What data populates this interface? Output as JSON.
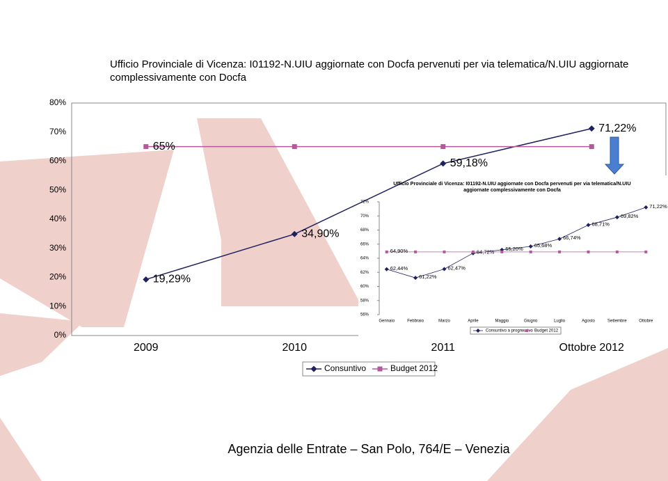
{
  "chart_data": [
    {
      "type": "line",
      "title": "Ufficio Provinciale di Vicenza: I01192-N.UIU aggiornate con Docfa pervenuti per via telematica/N.UIU aggiornate complessivamente con Docfa",
      "categories": [
        "2009",
        "2010",
        "2011",
        "Ottobre 2012"
      ],
      "series": [
        {
          "name": "Consuntivo",
          "color": "#1f2060",
          "marker": "diamond",
          "values": [
            19.29,
            34.9,
            59.18,
            71.22
          ],
          "value_labels": [
            "19,29%",
            "34,90%",
            "59,18%",
            "71,22%"
          ]
        },
        {
          "name": "Budget 2012",
          "color": "#b4579c",
          "marker": "square",
          "values": [
            65,
            65,
            65,
            65
          ],
          "value_labels": [
            "65%",
            null,
            null,
            null
          ]
        }
      ],
      "ylim": [
        0,
        80
      ],
      "yticks": [
        {
          "value": 0,
          "label": "0%"
        },
        {
          "value": 10,
          "label": "10%"
        },
        {
          "value": 20,
          "label": "20%"
        },
        {
          "value": 30,
          "label": "30%"
        },
        {
          "value": 40,
          "label": "40%"
        },
        {
          "value": 50,
          "label": "50%"
        },
        {
          "value": 60,
          "label": "60%"
        },
        {
          "value": 70,
          "label": "70%"
        },
        {
          "value": 80,
          "label": "80%"
        }
      ],
      "grid": false
    },
    {
      "type": "line",
      "title": "Ufficio Provinciale di Vicenza: I01192-N.UIU aggiornate con Docfa pervenuti per via telematica/N.UIU aggiornate complessivamente con Docfa",
      "categories": [
        "Gennaio",
        "Febbraio",
        "Marzo",
        "Aprile",
        "Maggio",
        "Giugno",
        "Luglio",
        "Agosto",
        "Settembre",
        "Ottobre"
      ],
      "series": [
        {
          "name": "Consuntivo a progressivo",
          "color": "#1f2060",
          "marker": "diamond",
          "values": [
            62.44,
            61.22,
            62.47,
            64.72,
            65.2,
            65.68,
            66.74,
            68.71,
            69.82,
            71.22
          ],
          "value_labels": [
            "62,44%",
            "61,22%",
            "62,47%",
            "64,72%",
            "65,20%",
            "65,68%",
            "66,74%",
            "68,71%",
            "69,82%",
            "71,22%"
          ]
        },
        {
          "name": "Budget 2012",
          "color": "#b4579c",
          "marker": "square",
          "values": [
            64.9,
            64.9,
            64.9,
            64.9,
            64.9,
            64.9,
            64.9,
            64.9,
            64.9,
            64.9
          ],
          "value_labels": [
            "64,90%",
            null,
            null,
            null,
            null,
            null,
            null,
            null,
            null,
            null
          ]
        }
      ],
      "ylim": [
        56,
        72
      ],
      "yticks": [
        {
          "value": 56,
          "label": "56%"
        },
        {
          "value": 58,
          "label": "58%"
        },
        {
          "value": 60,
          "label": "60%"
        },
        {
          "value": 62,
          "label": "62%"
        },
        {
          "value": 64,
          "label": "64%"
        },
        {
          "value": 66,
          "label": "66%"
        },
        {
          "value": 68,
          "label": "68%"
        },
        {
          "value": 70,
          "label": "70%"
        },
        {
          "value": 72,
          "label": "72%"
        }
      ],
      "grid": false
    }
  ],
  "footer": "Agenzia delle Entrate – San Polo, 764/E – Venezia"
}
